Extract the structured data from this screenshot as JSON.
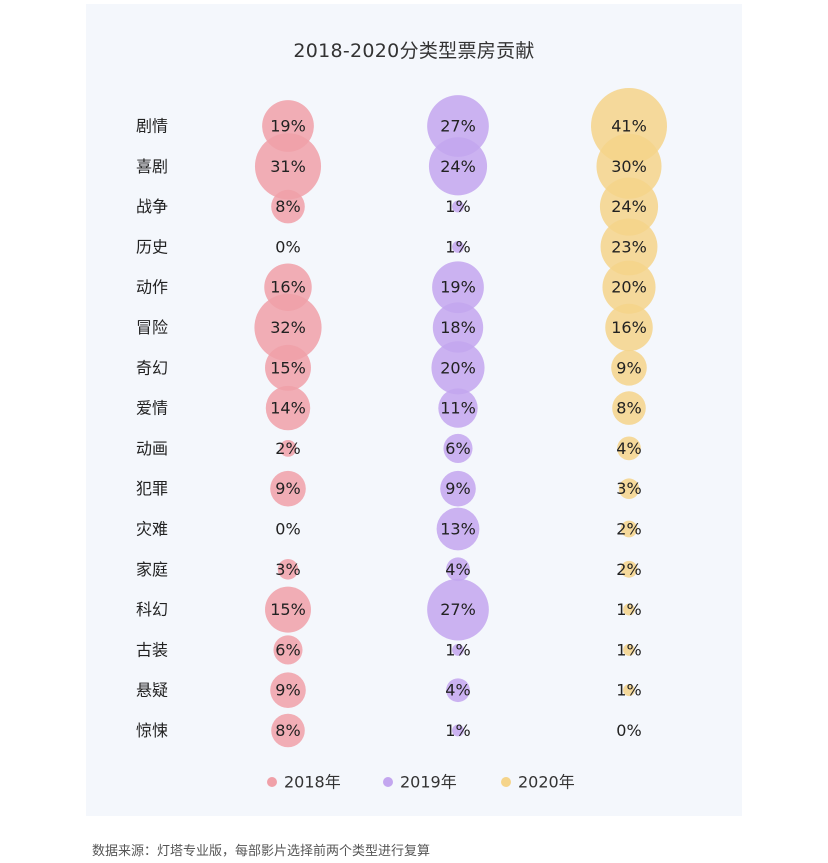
{
  "chart_data": {
    "type": "bubble",
    "title": "2018-2020分类型票房贡献",
    "categories": [
      "剧情",
      "喜剧",
      "战争",
      "历史",
      "动作",
      "冒险",
      "奇幻",
      "爱情",
      "动画",
      "犯罪",
      "灾难",
      "家庭",
      "科幻",
      "古装",
      "悬疑",
      "惊悚"
    ],
    "series": [
      {
        "name": "2018年",
        "color": "#f0a0a8",
        "values": [
          19,
          31,
          8,
          0,
          16,
          32,
          15,
          14,
          2,
          9,
          0,
          3,
          15,
          6,
          9,
          8
        ]
      },
      {
        "name": "2019年",
        "color": "#c3a6ef",
        "values": [
          27,
          24,
          1,
          1,
          19,
          18,
          20,
          11,
          6,
          9,
          13,
          4,
          27,
          1,
          4,
          1
        ]
      },
      {
        "name": "2020年",
        "color": "#f5d48a",
        "values": [
          41,
          30,
          24,
          23,
          20,
          16,
          9,
          8,
          4,
          3,
          2,
          2,
          1,
          1,
          1,
          0
        ]
      }
    ],
    "value_suffix": "%",
    "legend_position": "bottom",
    "grid": false
  },
  "source_note": "数据来源：灯塔专业版，每部影片选择前两个类型进行复算"
}
